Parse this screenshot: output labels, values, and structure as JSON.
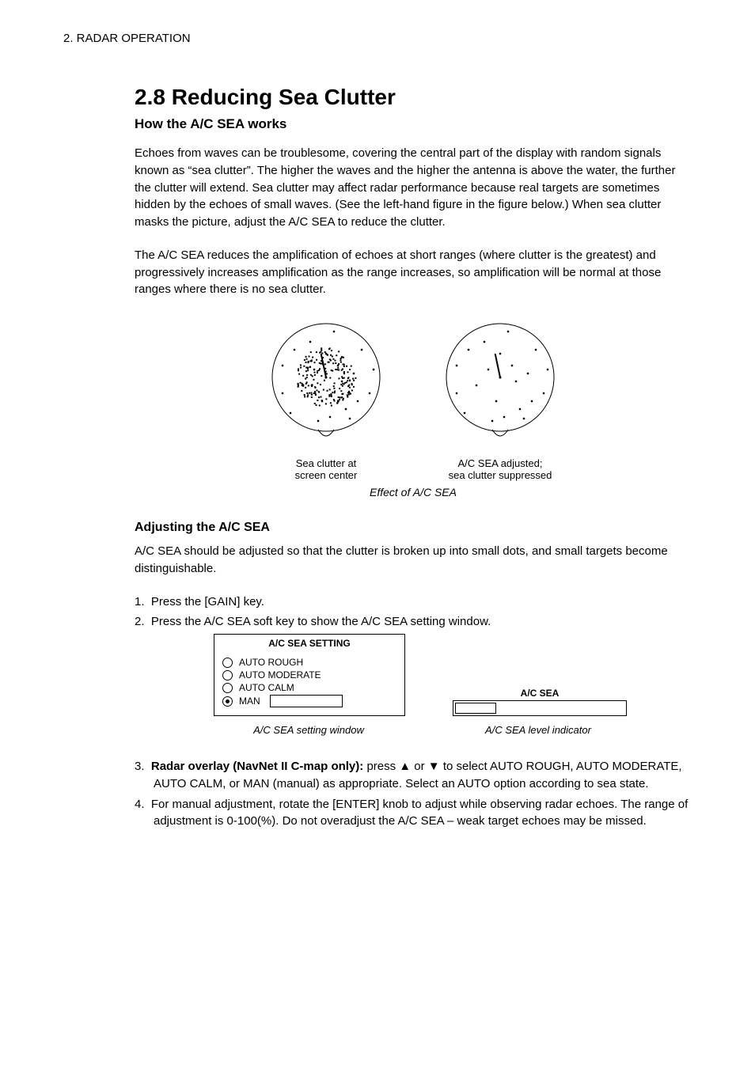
{
  "header": "2. RADAR OPERATION",
  "section_title": "2.8 Reducing Sea Clutter",
  "sub_how_works": "How the A/C SEA works",
  "para1": "Echoes from waves can be troublesome, covering the central part of the display with random signals known as “sea clutter”. The higher the waves and the higher the antenna is above the water, the further the clutter will extend. Sea clutter may affect radar performance because real targets are sometimes hidden by the echoes of small waves. (See the left-hand figure in the figure below.) When sea clutter masks the picture, adjust the A/C SEA to reduce the clutter.",
  "para2": "The A/C SEA reduces the amplification of echoes at short ranges (where clutter is the greatest) and progressively increases amplification as the range increases, so amplification will be normal at those ranges where there is no sea clutter.",
  "fig_caption": "Effect of A/C SEA",
  "sub_adjusting": "Adjusting the A/C SEA",
  "para3": "A/C SEA should be adjusted so that the clutter is broken up into small dots, and small targets become distinguishable.",
  "step1": "Press the [GAIN] key.",
  "step2": "Press the A/C SEA soft key to show the A/C SEA setting window.",
  "window": {
    "title": "A/C SEA SETTING",
    "opts": [
      "AUTO ROUGH",
      "AUTO MODERATE",
      "AUTO CALM",
      "MAN"
    ],
    "selected": 3
  },
  "side": {
    "label": "A/C SEA"
  },
  "cap_left": "A/C SEA setting window",
  "cap_right": "A/C SEA level indicator",
  "step3_lead": "Radar overlay (NavNet II C-map only): ",
  "step3_rest": "press ▲ or ▼ to select AUTO ROUGH, AUTO MODERATE, AUTO CALM, or MAN (manual) as appropriate. Select an AUTO option according to sea state.",
  "step4": "For manual adjustment, rotate the [ENTER] knob to adjust while observing radar echoes. The range of adjustment is 0-100(%). Do not overadjust the A/C SEA – weak target echoes may be missed.",
  "radar_figure": {
    "left_label": "Sea clutter at\nscreen center",
    "right_label": "A/C SEA adjusted;\nsea clutter suppressed",
    "circle_r": 68,
    "heading_line_deg": -12,
    "sparse_dots": [
      [
        -50,
        -50
      ],
      [
        50,
        -48
      ],
      [
        60,
        -10
      ],
      [
        55,
        20
      ],
      [
        52,
        40
      ],
      [
        30,
        52
      ],
      [
        -10,
        55
      ],
      [
        -45,
        45
      ],
      [
        -55,
        20
      ],
      [
        -55,
        -15
      ],
      [
        -35,
        -55
      ],
      [
        10,
        -58
      ],
      [
        45,
        -35
      ],
      [
        15,
        -15
      ],
      [
        -15,
        -10
      ],
      [
        -5,
        30
      ],
      [
        20,
        5
      ],
      [
        35,
        -5
      ],
      [
        -30,
        10
      ],
      [
        0,
        -30
      ],
      [
        40,
        30
      ],
      [
        -40,
        -35
      ],
      [
        25,
        40
      ],
      [
        -20,
        -45
      ],
      [
        5,
        50
      ]
    ]
  },
  "colors": {
    "text": "#000000",
    "bg": "#ffffff"
  }
}
